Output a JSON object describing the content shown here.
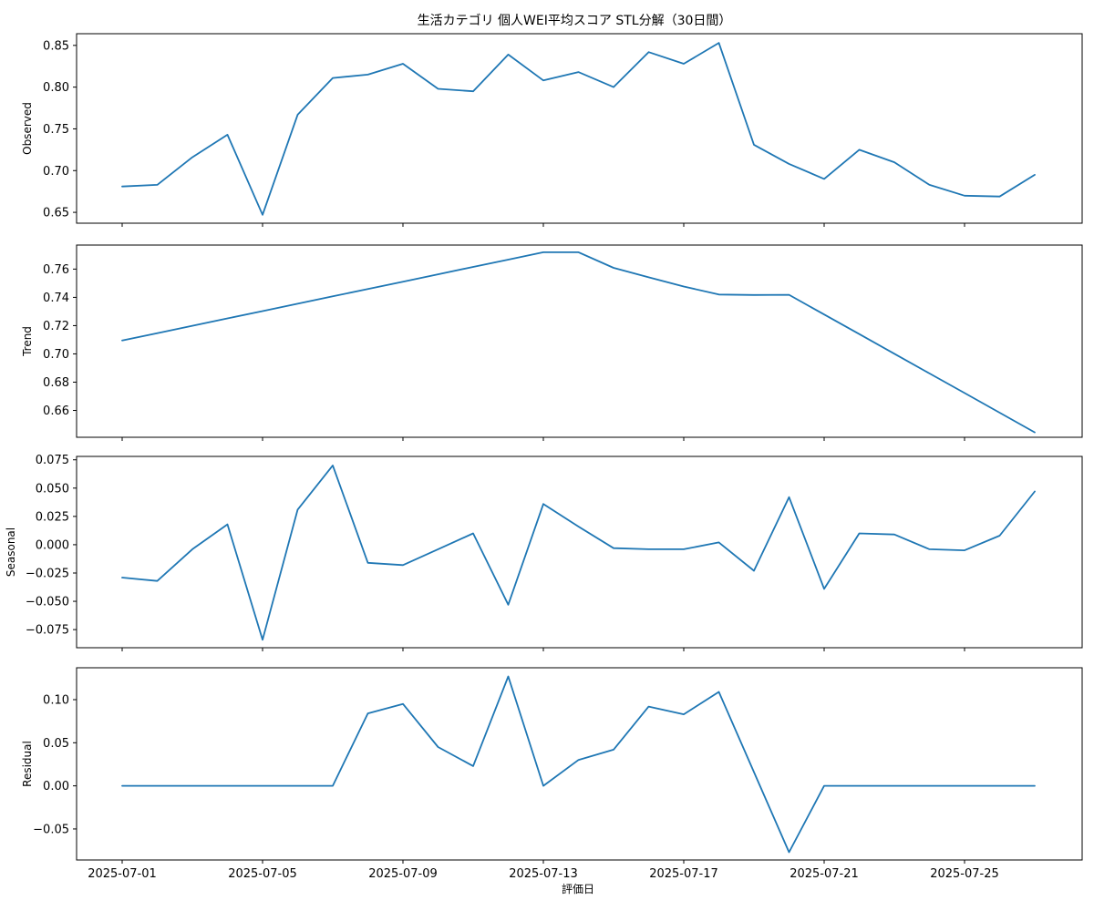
{
  "chart_data": {
    "type": "line",
    "title": "生活カテゴリ 個人WEI平均スコア STL分解（30日間）",
    "xlabel": "評価日",
    "x": [
      "2025-07-01",
      "2025-07-02",
      "2025-07-03",
      "2025-07-04",
      "2025-07-05",
      "2025-07-06",
      "2025-07-07",
      "2025-07-08",
      "2025-07-09",
      "2025-07-10",
      "2025-07-11",
      "2025-07-12",
      "2025-07-13",
      "2025-07-14",
      "2025-07-15",
      "2025-07-16",
      "2025-07-17",
      "2025-07-18",
      "2025-07-19",
      "2025-07-20",
      "2025-07-21",
      "2025-07-22",
      "2025-07-23",
      "2025-07-24",
      "2025-07-25",
      "2025-07-26",
      "2025-07-27"
    ],
    "x_ticks": [
      "2025-07-01",
      "2025-07-05",
      "2025-07-09",
      "2025-07-13",
      "2025-07-17",
      "2025-07-21",
      "2025-07-25"
    ],
    "line_color": "#1f77b4",
    "panels": [
      {
        "ylabel": "Observed",
        "ylim": [
          0.637,
          0.864
        ],
        "yticks": [
          "0.65",
          "0.70",
          "0.75",
          "0.80",
          "0.85"
        ],
        "values": [
          0.681,
          0.683,
          0.716,
          0.743,
          0.647,
          0.767,
          0.811,
          0.815,
          0.828,
          0.798,
          0.795,
          0.839,
          0.808,
          0.818,
          0.8,
          0.842,
          0.828,
          0.853,
          0.731,
          0.708,
          0.69,
          0.725,
          0.71,
          0.683,
          0.67,
          0.669,
          0.695
        ]
      },
      {
        "ylabel": "Trend",
        "ylim": [
          0.641,
          0.777
        ],
        "yticks": [
          "0.66",
          "0.68",
          "0.70",
          "0.72",
          "0.74",
          "0.76"
        ],
        "values": [
          0.7095,
          0.7147,
          0.7199,
          0.7251,
          0.7303,
          0.7355,
          0.7407,
          0.7459,
          0.7511,
          0.7563,
          0.7615,
          0.7667,
          0.7719,
          0.7719,
          0.7609,
          0.7542,
          0.7477,
          0.742,
          0.7417,
          0.7418,
          0.7279,
          0.714,
          0.7001,
          0.6862,
          0.6723,
          0.6584,
          0.6445
        ]
      },
      {
        "ylabel": "Seasonal",
        "ylim": [
          -0.091,
          0.078
        ],
        "yticks": [
          "−0.075",
          "−0.050",
          "−0.025",
          "0.000",
          "0.025",
          "0.050",
          "0.075"
        ],
        "values": [
          -0.029,
          -0.032,
          -0.004,
          0.018,
          -0.084,
          0.031,
          0.07,
          -0.016,
          -0.018,
          -0.004,
          0.01,
          -0.053,
          0.036,
          0.016,
          -0.003,
          -0.004,
          -0.004,
          0.002,
          -0.023,
          0.042,
          -0.039,
          0.01,
          0.009,
          -0.004,
          -0.005,
          0.008,
          0.047
        ]
      },
      {
        "ylabel": "Residual",
        "ylim": [
          -0.086,
          0.137
        ],
        "yticks": [
          "−0.05",
          "0.00",
          "0.05",
          "0.10"
        ],
        "values": [
          0.0,
          0.0,
          0.0,
          0.0,
          0.0,
          0.0,
          0.0,
          0.084,
          0.095,
          0.045,
          0.023,
          0.127,
          0.0,
          0.03,
          0.042,
          0.092,
          0.083,
          0.109,
          0.016,
          -0.077,
          0.0,
          0.0,
          0.0,
          0.0,
          0.0,
          0.0,
          0.0
        ]
      }
    ]
  }
}
